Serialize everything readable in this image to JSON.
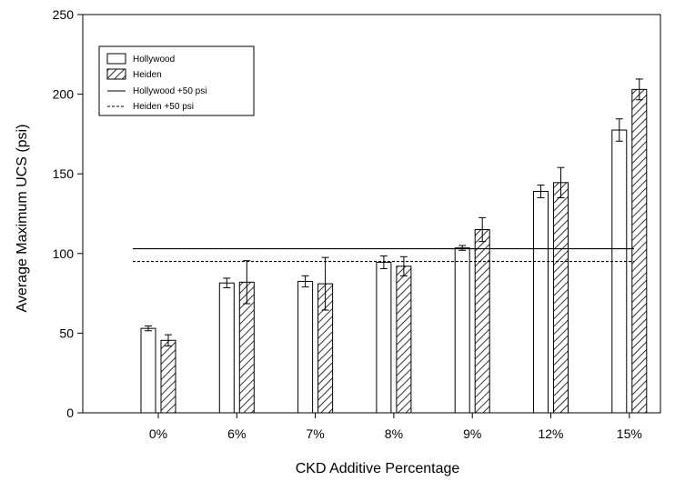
{
  "chart_data": {
    "type": "bar",
    "title": "",
    "xlabel": "CKD Additive Percentage",
    "ylabel": "Average Maximum UCS (psi)",
    "ylim": [
      0,
      250
    ],
    "yticks": [
      0,
      50,
      100,
      150,
      200,
      250
    ],
    "categories": [
      "0%",
      "6%",
      "7%",
      "8%",
      "9%",
      "12%",
      "15%"
    ],
    "series": [
      {
        "name": "Hollywood",
        "pattern": "open",
        "values": [
          53,
          81.5,
          82.5,
          94.5,
          103.5,
          139,
          177.5
        ],
        "errors": [
          1.5,
          3,
          3.5,
          4,
          1.5,
          4,
          7
        ]
      },
      {
        "name": "Heiden",
        "pattern": "hatched",
        "values": [
          45.5,
          82,
          81,
          92,
          115,
          144.5,
          203
        ],
        "errors": [
          3.5,
          13.5,
          16.5,
          6,
          7.5,
          9.5,
          6.5
        ]
      }
    ],
    "reference_lines": [
      {
        "name": "Hollywood +50 psi",
        "value": 103,
        "style": "solid"
      },
      {
        "name": "Heiden +50 psi",
        "value": 95,
        "style": "dashed"
      }
    ],
    "legend_position": "top-left",
    "grid": false
  }
}
